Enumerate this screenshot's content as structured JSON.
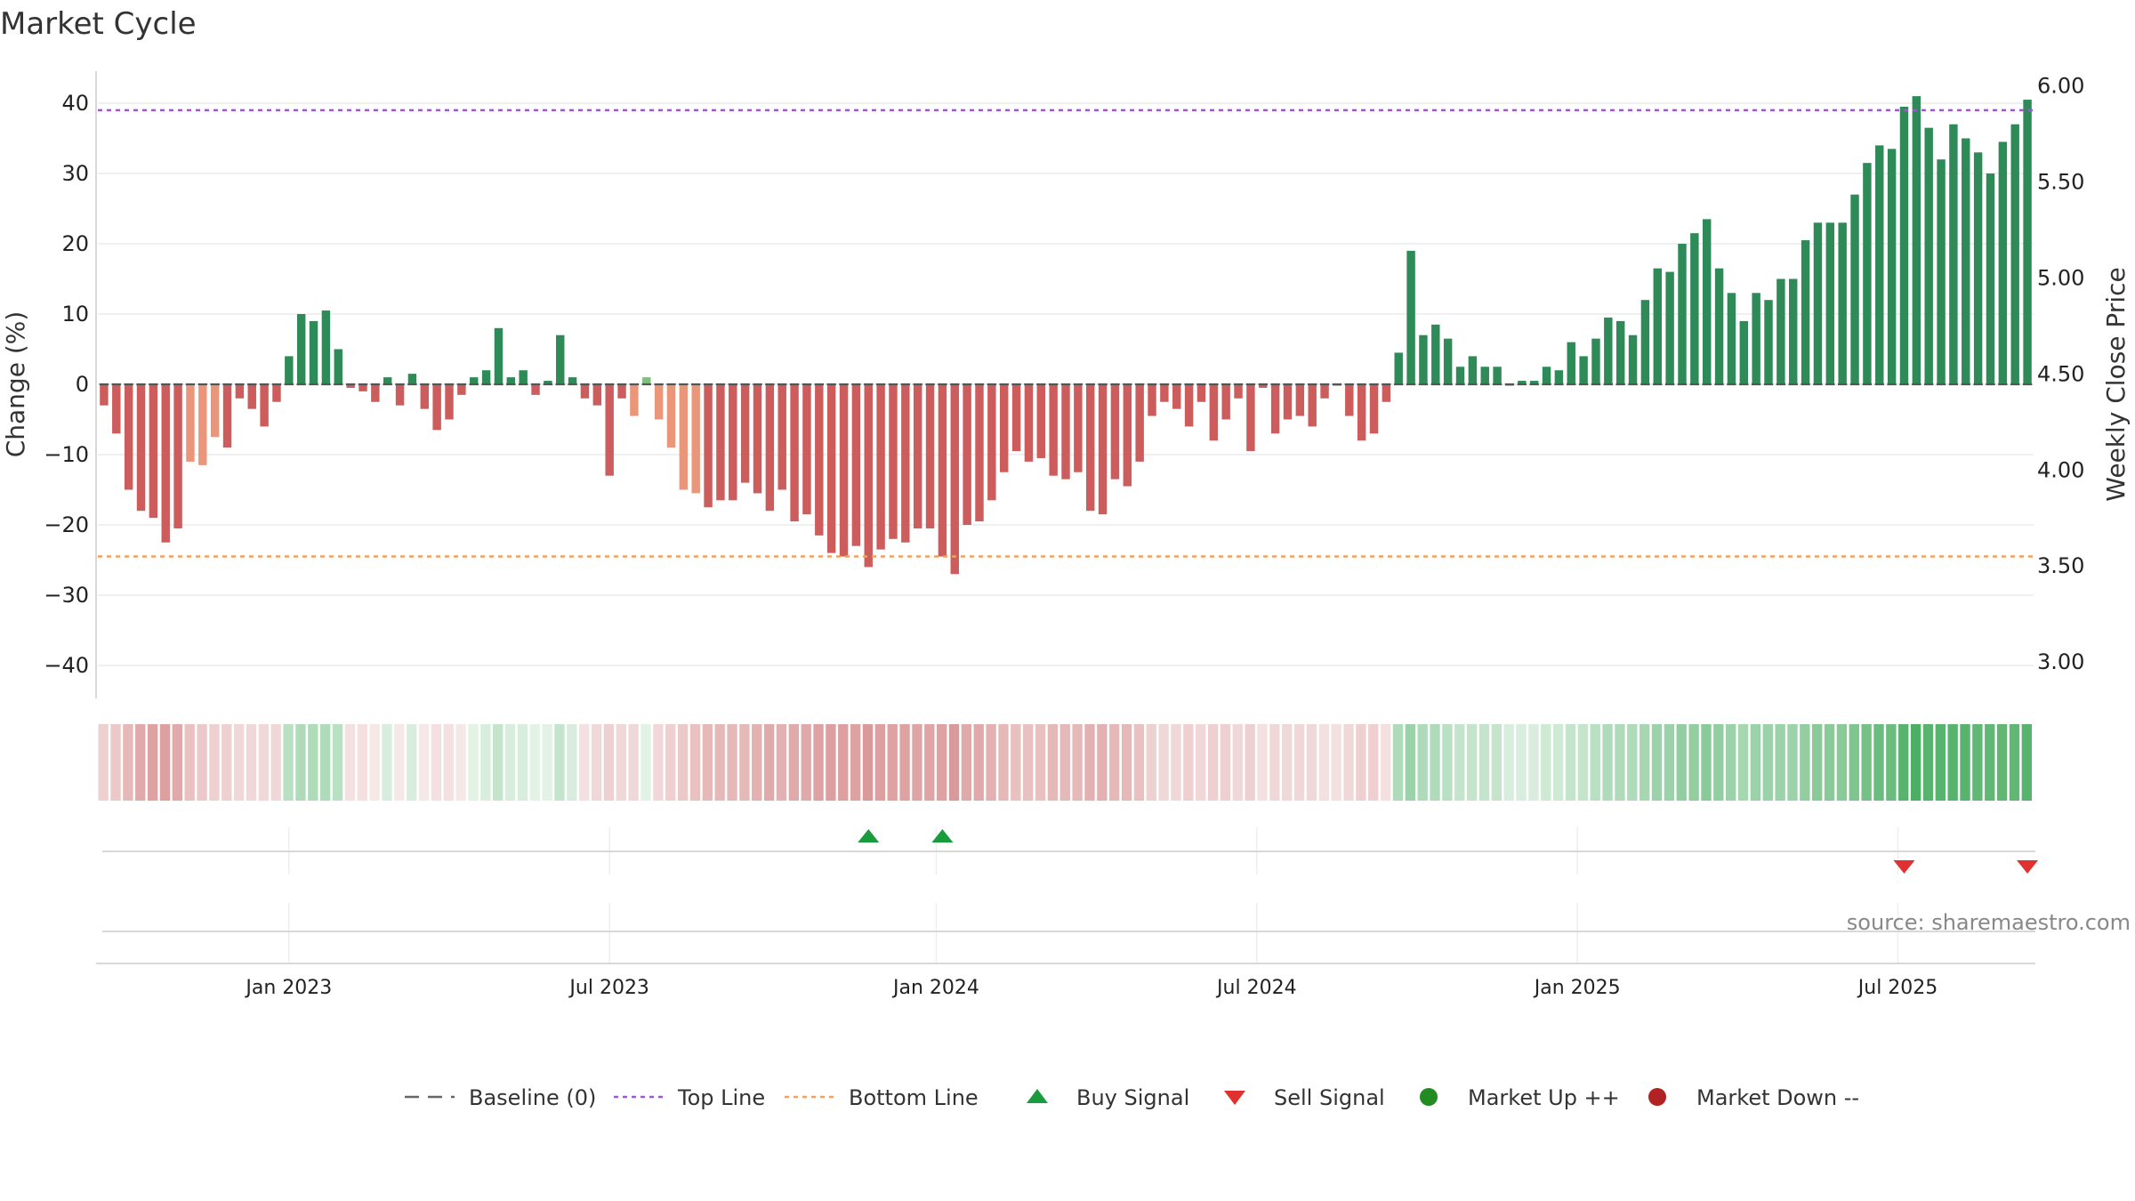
{
  "chart_data": {
    "type": "bar",
    "title": "Market Cycle",
    "ylabel": "Change (%)",
    "y2label": "Weekly Close Price",
    "ylim": [
      -45,
      45
    ],
    "y_ticks": [
      -40,
      -30,
      -20,
      -10,
      0,
      10,
      20,
      30,
      40
    ],
    "y2lim": [
      2.88,
      6.1
    ],
    "y2_ticks": [
      "3.00",
      "3.50",
      "4.00",
      "4.50",
      "5.00",
      "5.50",
      "6.00"
    ],
    "top_line": 39,
    "bottom_line": -24.5,
    "x_labels": [
      "Jan 2023",
      "Jul 2023",
      "Jan 2024",
      "Jul 2024",
      "Jan 2025",
      "Jul 2025"
    ],
    "x_label_index": [
      15,
      41,
      67.5,
      93.5,
      119.5,
      145.5
    ],
    "values": [
      -3,
      -7,
      -15,
      -18,
      -19,
      -22.5,
      -20.5,
      -11,
      -11.5,
      -7.5,
      -9,
      -2,
      -3.5,
      -6,
      -2.5,
      4,
      10,
      9,
      10.5,
      5,
      -0.5,
      -1,
      -2.5,
      1,
      -3,
      1.5,
      -3.5,
      -6.5,
      -5,
      -1.5,
      1,
      2,
      8,
      1,
      2,
      -1.5,
      0.5,
      7,
      1,
      -2,
      -3,
      -13,
      -2,
      -4.5,
      1,
      -5,
      -9,
      -15,
      -15.5,
      -17.5,
      -16.5,
      -16.5,
      -14,
      -15.5,
      -18,
      -15,
      -19.5,
      -18.5,
      -21.5,
      -24,
      -24.5,
      -23,
      -26,
      -23.5,
      -22,
      -22.5,
      -20.5,
      -20.5,
      -24.5,
      -27,
      -20,
      -19.5,
      -16.5,
      -12.5,
      -9.5,
      -11,
      -10.5,
      -13,
      -13.5,
      -12.5,
      -18,
      -18.5,
      -13.5,
      -14.5,
      -11,
      -4.5,
      -2.5,
      -3.5,
      -6,
      -2.5,
      -8,
      -5,
      -2,
      -9.5,
      -0.5,
      -7,
      -5,
      -4.5,
      -6,
      -2,
      0,
      -4.5,
      -8,
      -7,
      -2.5,
      4.5,
      19,
      7,
      8.5,
      6.5,
      2.5,
      4,
      2.5,
      2.5,
      0,
      0.5,
      0.5,
      2.5,
      2,
      6,
      4,
      6.5,
      9.5,
      9,
      7,
      12,
      16.5,
      16,
      20,
      21.5,
      23.5,
      16.5,
      13,
      9,
      13,
      12,
      15,
      15,
      20.5,
      23,
      23,
      23,
      27,
      31.5,
      34,
      33.5,
      39.5,
      41,
      36.5,
      32,
      37,
      35,
      33,
      30,
      34.5,
      37,
      40.5
    ],
    "bar_shade": "1111111000111111111111111111111111111111111000000111111111111111111111111111111111111111111111111111111111111111111111111111111111111111111111111111111111111111",
    "heat_strip": [
      -0.3,
      -0.35,
      -0.45,
      -0.55,
      -0.6,
      -0.62,
      -0.55,
      -0.4,
      -0.35,
      -0.3,
      -0.3,
      -0.25,
      -0.25,
      -0.25,
      -0.25,
      0.35,
      0.4,
      0.4,
      0.4,
      0.35,
      -0.2,
      -0.2,
      -0.15,
      0.2,
      -0.15,
      0.2,
      -0.15,
      -0.2,
      -0.2,
      -0.15,
      0.15,
      0.2,
      0.3,
      0.2,
      0.2,
      0.15,
      0.15,
      0.3,
      0.2,
      -0.2,
      -0.25,
      -0.3,
      -0.25,
      -0.25,
      0.15,
      -0.25,
      -0.3,
      -0.35,
      -0.4,
      -0.45,
      -0.45,
      -0.45,
      -0.45,
      -0.5,
      -0.55,
      -0.5,
      -0.55,
      -0.55,
      -0.6,
      -0.62,
      -0.62,
      -0.6,
      -0.65,
      -0.62,
      -0.6,
      -0.6,
      -0.58,
      -0.58,
      -0.6,
      -0.65,
      -0.55,
      -0.55,
      -0.5,
      -0.45,
      -0.4,
      -0.4,
      -0.4,
      -0.45,
      -0.45,
      -0.45,
      -0.5,
      -0.5,
      -0.45,
      -0.45,
      -0.4,
      -0.3,
      -0.25,
      -0.25,
      -0.3,
      -0.25,
      -0.3,
      -0.3,
      -0.25,
      -0.3,
      -0.2,
      -0.25,
      -0.25,
      -0.25,
      -0.25,
      -0.2,
      -0.2,
      -0.25,
      -0.3,
      -0.3,
      -0.2,
      0.4,
      0.5,
      0.4,
      0.4,
      0.35,
      0.3,
      0.3,
      0.3,
      0.3,
      0.2,
      0.2,
      0.2,
      0.25,
      0.25,
      0.3,
      0.3,
      0.35,
      0.4,
      0.4,
      0.4,
      0.45,
      0.5,
      0.5,
      0.55,
      0.55,
      0.6,
      0.55,
      0.5,
      0.45,
      0.5,
      0.5,
      0.5,
      0.5,
      0.55,
      0.6,
      0.6,
      0.6,
      0.65,
      0.7,
      0.75,
      0.75,
      0.85,
      0.9,
      0.85,
      0.85,
      0.85,
      0.85,
      0.8,
      0.8,
      0.8,
      0.8,
      0.85
    ],
    "buy_signals": [
      62,
      68
    ],
    "sell_signals": [
      146,
      156
    ]
  },
  "legend": [
    {
      "label": "Baseline (0)",
      "icon": "dash-line",
      "color": "#666666"
    },
    {
      "label": "Top Line",
      "icon": "dotted-line",
      "color": "#9b59d0"
    },
    {
      "label": "Bottom Line",
      "icon": "dotted-line",
      "color": "#f0a060"
    },
    {
      "label": "Buy Signal",
      "icon": "triangle-up",
      "color": "#1a9c3e"
    },
    {
      "label": "Sell Signal",
      "icon": "triangle-down",
      "color": "#e03030"
    },
    {
      "label": "Market Up ++",
      "icon": "circle",
      "color": "#228b22"
    },
    {
      "label": "Market Down --",
      "icon": "circle",
      "color": "#b22222"
    }
  ],
  "source": "source: sharemaestro.com",
  "colors": {
    "up_dark": "#2e8b57",
    "up_light": "#7fbf7f",
    "down_dark": "#cd5c5c",
    "down_light": "#e9967a",
    "grid": "#e6e6e6",
    "strip_up": "#3aa653",
    "strip_down": "#c86464"
  }
}
